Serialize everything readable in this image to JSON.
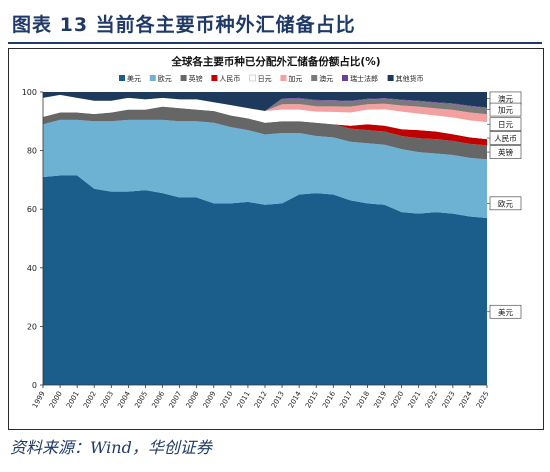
{
  "figure": {
    "title": "图表 13    当前各主要币种外汇储备占比",
    "source": "资料来源：Wind，华创证券"
  },
  "chart_data": {
    "type": "area",
    "stacked": true,
    "title": "全球各主要币种已分配外汇储备份额占比(%)",
    "xlabel": "",
    "ylabel": "",
    "ylim": [
      0,
      100
    ],
    "yticks": [
      0,
      20,
      40,
      60,
      80,
      100
    ],
    "x": [
      "1999",
      "2000",
      "2001",
      "2002",
      "2003",
      "2004",
      "2005",
      "2006",
      "2007",
      "2008",
      "2009",
      "2010",
      "2011",
      "2012",
      "2013",
      "2014",
      "2015",
      "2016",
      "2017",
      "2018",
      "2019",
      "2020",
      "2021",
      "2022",
      "2023",
      "2024",
      "2025"
    ],
    "legend_position": "top",
    "grid": false,
    "series": [
      {
        "name": "美元",
        "color": "#1b5e8c",
        "values": [
          71.0,
          71.5,
          71.5,
          67.0,
          66.0,
          66.0,
          66.5,
          65.5,
          64.0,
          64.0,
          62.0,
          62.0,
          62.5,
          61.5,
          62.0,
          65.0,
          65.5,
          65.0,
          63.0,
          62.0,
          61.5,
          59.0,
          58.5,
          59.0,
          58.5,
          57.5,
          57.0
        ]
      },
      {
        "name": "欧元",
        "color": "#6db2d3",
        "values": [
          18.0,
          19.0,
          19.0,
          23.0,
          24.0,
          24.5,
          24.0,
          25.0,
          26.0,
          26.0,
          27.5,
          26.0,
          24.5,
          24.0,
          24.0,
          21.0,
          19.5,
          19.5,
          20.0,
          20.5,
          20.5,
          21.5,
          21.0,
          20.0,
          20.0,
          20.0,
          20.0
        ]
      },
      {
        "name": "英镑",
        "color": "#666666",
        "values": [
          2.5,
          2.5,
          2.5,
          2.5,
          3.0,
          3.5,
          3.5,
          4.5,
          4.5,
          4.0,
          4.0,
          4.0,
          4.0,
          4.0,
          4.0,
          4.0,
          4.5,
          4.5,
          4.5,
          4.5,
          4.5,
          4.5,
          4.7,
          4.9,
          4.8,
          4.8,
          4.8
        ]
      },
      {
        "name": "人民币",
        "color": "#c00000",
        "values": [
          0,
          0,
          0,
          0,
          0,
          0,
          0,
          0,
          0,
          0,
          0,
          0,
          0,
          0,
          0,
          0,
          0,
          0,
          1.0,
          2.0,
          2.0,
          2.3,
          2.8,
          2.6,
          2.3,
          2.2,
          2.1
        ]
      },
      {
        "name": "日元",
        "color": "#ffffff",
        "values": [
          6.5,
          6.0,
          5.0,
          4.5,
          4.0,
          4.0,
          3.5,
          3.0,
          3.0,
          3.5,
          3.0,
          3.5,
          3.5,
          4.0,
          4.0,
          4.0,
          3.8,
          4.2,
          4.5,
          5.0,
          5.6,
          6.0,
          5.6,
          5.5,
          5.7,
          5.8,
          5.8
        ]
      },
      {
        "name": "加元",
        "color": "#f4a0a0",
        "values": [
          0,
          0,
          0,
          0,
          0,
          0,
          0,
          0,
          0,
          0,
          0,
          0,
          0,
          0,
          1.8,
          1.9,
          1.8,
          1.9,
          2.0,
          1.8,
          1.9,
          2.1,
          2.4,
          2.4,
          2.6,
          2.7,
          2.7
        ]
      },
      {
        "name": "澳元",
        "color": "#7a7a7a",
        "values": [
          0,
          0,
          0,
          0,
          0,
          0,
          0,
          0,
          0,
          0,
          0,
          0,
          0,
          0,
          1.8,
          1.8,
          1.9,
          1.9,
          1.8,
          1.7,
          1.7,
          1.8,
          1.8,
          1.9,
          2.0,
          2.1,
          2.1
        ]
      },
      {
        "name": "瑞士法郎",
        "color": "#6b3fa0",
        "values": [
          0,
          0,
          0,
          0,
          0,
          0,
          0,
          0,
          0,
          0,
          0,
          0,
          0,
          0,
          0.2,
          0.3,
          0.3,
          0.2,
          0.2,
          0.2,
          0.2,
          0.2,
          0.2,
          0.2,
          0.2,
          0.2,
          0.2
        ]
      },
      {
        "name": "其他货币",
        "color": "#1d3a5c",
        "values": [
          2.0,
          1.0,
          2.0,
          3.0,
          3.0,
          2.0,
          2.5,
          2.0,
          2.5,
          2.5,
          3.5,
          4.5,
          5.5,
          6.5,
          2.2,
          2.0,
          2.7,
          2.8,
          3.0,
          2.3,
          2.1,
          2.6,
          3.0,
          3.5,
          3.9,
          4.7,
          5.3
        ]
      }
    ],
    "annotations": [
      {
        "text": "澳元",
        "value": 97.8
      },
      {
        "text": "加元",
        "value": 94.0
      },
      {
        "text": "日元",
        "value": 89.0
      },
      {
        "text": "人民币",
        "value": 84.3
      },
      {
        "text": "英镑",
        "value": 79.5
      },
      {
        "text": "欧元",
        "value": 62.0
      },
      {
        "text": "美元",
        "value": 25.0
      }
    ]
  }
}
